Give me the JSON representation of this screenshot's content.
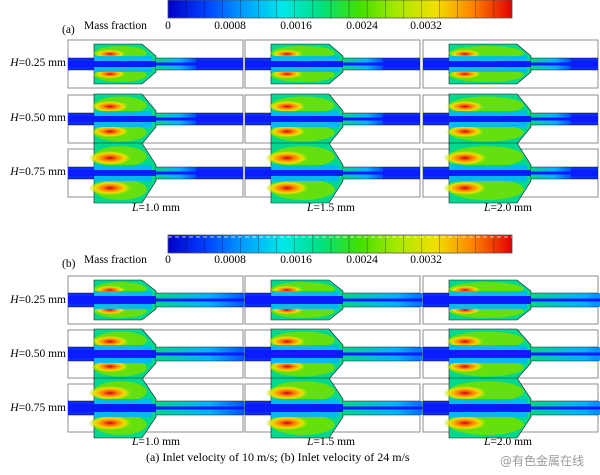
{
  "panels": [
    {
      "label": "(a)",
      "colorbar": {
        "title": "Mass fraction",
        "ticks": [
          "0",
          "0.0008",
          "0.0016",
          "0.0024",
          "0.0032"
        ],
        "tick_values": [
          0,
          0.0008,
          0.0016,
          0.0024,
          0.0032
        ],
        "max": 0.0039
      },
      "rows": [
        {
          "label_italic": "H",
          "label_rest": "=0.25 mm"
        },
        {
          "label_italic": "H",
          "label_rest": "=0.50 mm"
        },
        {
          "label_italic": "H",
          "label_rest": "=0.75 mm"
        }
      ],
      "columns": [
        {
          "label_italic": "L",
          "label_rest": "=1.0 mm"
        },
        {
          "label_italic": "L",
          "label_rest": "=1.5 mm"
        },
        {
          "label_italic": "L",
          "label_rest": "=2.0 mm"
        }
      ]
    },
    {
      "label": "(b)",
      "colorbar": {
        "title": "Mass fraction",
        "ticks": [
          "0",
          "0.0008",
          "0.0016",
          "0.0024",
          "0.0032"
        ],
        "tick_values": [
          0,
          0.0008,
          0.0016,
          0.0024,
          0.0032
        ],
        "max": 0.0039
      },
      "rows": [
        {
          "label_italic": "H",
          "label_rest": "=0.25 mm"
        },
        {
          "label_italic": "H",
          "label_rest": "=0.50 mm"
        },
        {
          "label_italic": "H",
          "label_rest": "=0.75 mm"
        }
      ],
      "columns": [
        {
          "label_italic": "L",
          "label_rest": "=1.0 mm"
        },
        {
          "label_italic": "L",
          "label_rest": "=1.5 mm"
        },
        {
          "label_italic": "L",
          "label_rest": "=2.0 mm"
        }
      ]
    }
  ],
  "caption": "(a) Inlet velocity of 10 m/s; (b) Inlet velocity of 24 m/s",
  "watermark": "@有色金属在线",
  "colors": {
    "colormap": [
      "#0000c8",
      "#0040ff",
      "#00a0ff",
      "#00e8e8",
      "#00e080",
      "#40e000",
      "#a8e800",
      "#f0e000",
      "#ff8000",
      "#e00000"
    ],
    "frame": "#8c8c8c"
  }
}
